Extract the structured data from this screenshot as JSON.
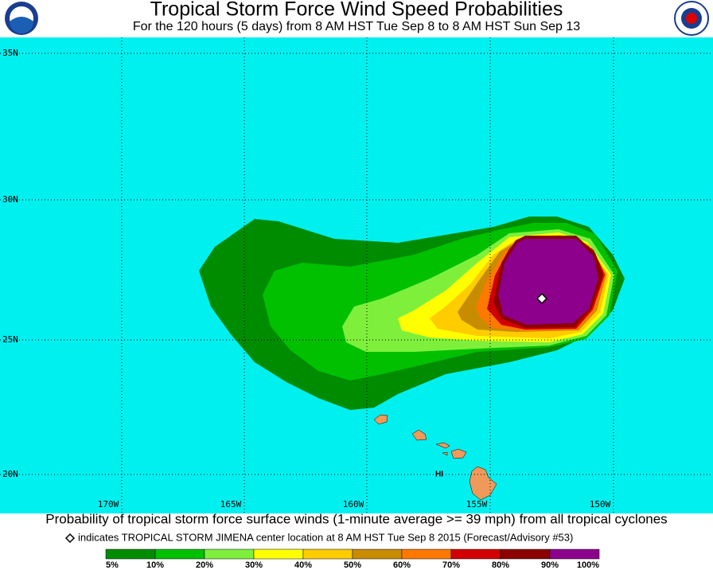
{
  "header": {
    "title": "Tropical Storm Force Wind Speed Probabilities",
    "subtitle": "For the 120 hours (5 days) from 8 AM HST Tue Sep 8 to 8 AM HST Sun Sep 13"
  },
  "map": {
    "lat_labels": [
      "35N",
      "30N",
      "25N",
      "20N"
    ],
    "lon_labels": [
      "170W",
      "165W",
      "160W",
      "155W",
      "150W"
    ],
    "place_label": "HI"
  },
  "caption": "Probability of tropical storm force surface winds (1-minute average >= 39 mph) from all tropical cyclones",
  "marker_note": "indicates TROPICAL STORM JIMENA center location at 8 AM HST Tue Sep 8 2015 (Forecast/Advisory #53)",
  "legend": {
    "labels": [
      "5%",
      "10%",
      "20%",
      "30%",
      "40%",
      "50%",
      "60%",
      "70%",
      "80%",
      "90%",
      "100%"
    ],
    "colors": [
      "#008c00",
      "#00c000",
      "#7ef03c",
      "#ffff00",
      "#ffcc00",
      "#c88c00",
      "#ff7800",
      "#d20000",
      "#8c0000",
      "#8c008c"
    ]
  }
}
